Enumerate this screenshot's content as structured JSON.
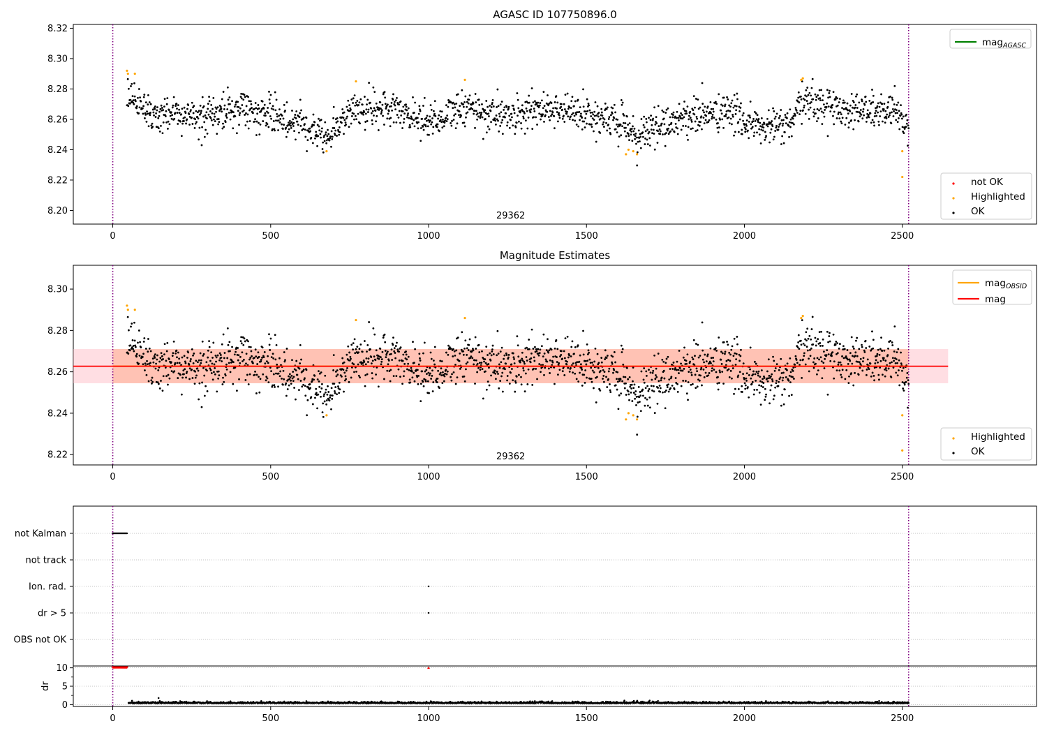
{
  "colors": {
    "ok": "#000000",
    "highlighted": "#ffa500",
    "not_ok": "#ff0000",
    "mag_agasc": "#008000",
    "mag_obsid": "#ffa500",
    "mag": "#ff0000",
    "band_obsid": "#ffa07a",
    "band_mag": "#ffb6c1",
    "obs_boundary": "#800080",
    "grid": "#b0b0b0"
  },
  "chart_data": [
    {
      "type": "scatter",
      "title": "AGASC ID 107750896.0",
      "x_range": [
        -125,
        2925
      ],
      "ylim": [
        8.191,
        8.3225
      ],
      "y_ticks": [
        "8.20",
        "8.22",
        "8.24",
        "8.26",
        "8.28",
        "8.30",
        "8.32"
      ],
      "x_ticks": [
        "0",
        "500",
        "1000",
        "1500",
        "2000",
        "2500"
      ],
      "obsid_boundaries": [
        0,
        2520
      ],
      "obsid_labels": [
        {
          "x": 1260,
          "text": "29362"
        }
      ],
      "series": [
        {
          "name": "not OK",
          "kind": "red",
          "values": []
        },
        {
          "name": "Highlighted",
          "kind": "highlighted",
          "points": [
            [
              45,
              8.292
            ],
            [
              48,
              8.29
            ],
            [
              70,
              8.29
            ],
            [
              677,
              8.239
            ],
            [
              770,
              8.285
            ],
            [
              1115,
              8.286
            ],
            [
              1625,
              8.237
            ],
            [
              1633,
              8.24
            ],
            [
              1648,
              8.239
            ],
            [
              1660,
              8.237
            ],
            [
              2180,
              8.286
            ],
            [
              2185,
              8.287
            ],
            [
              2500,
              8.239
            ],
            [
              2500,
              8.222
            ]
          ]
        },
        {
          "name": "OK",
          "kind": "ok",
          "generated_from_profile": true,
          "x_start": 45,
          "x_end": 2520,
          "count": 1800,
          "mean": 8.262,
          "profile": [
            [
              45,
              8.273
            ],
            [
              150,
              8.262
            ],
            [
              300,
              8.261
            ],
            [
              400,
              8.268
            ],
            [
              500,
              8.262
            ],
            [
              600,
              8.258
            ],
            [
              680,
              8.249
            ],
            [
              760,
              8.267
            ],
            [
              900,
              8.266
            ],
            [
              1000,
              8.259
            ],
            [
              1120,
              8.267
            ],
            [
              1250,
              8.262
            ],
            [
              1400,
              8.268
            ],
            [
              1500,
              8.262
            ],
            [
              1620,
              8.258
            ],
            [
              1640,
              8.247
            ],
            [
              1700,
              8.253
            ],
            [
              1800,
              8.261
            ],
            [
              1950,
              8.265
            ],
            [
              2050,
              8.254
            ],
            [
              2150,
              8.257
            ],
            [
              2190,
              8.273
            ],
            [
              2300,
              8.267
            ],
            [
              2450,
              8.265
            ],
            [
              2520,
              8.258
            ]
          ],
          "sd": 0.006
        }
      ],
      "legend_lines": [
        {
          "label": "mag",
          "subscript": "AGASC",
          "color_key": "mag_agasc"
        }
      ],
      "legend_points": [
        {
          "label": "not OK",
          "color_key": "not_ok"
        },
        {
          "label": "Highlighted",
          "color_key": "highlighted"
        },
        {
          "label": "OK",
          "color_key": "ok"
        }
      ]
    },
    {
      "type": "scatter",
      "title": "Magnitude Estimates",
      "x_range": [
        -125,
        2925
      ],
      "ylim": [
        8.215,
        8.3115
      ],
      "y_ticks": [
        "8.22",
        "8.24",
        "8.26",
        "8.28",
        "8.30"
      ],
      "x_ticks": [
        "0",
        "500",
        "1000",
        "1500",
        "2000",
        "2500"
      ],
      "obsid_boundaries": [
        0,
        2520
      ],
      "obsid_labels": [
        {
          "x": 1260,
          "text": "29362"
        }
      ],
      "mag_line": {
        "value": 8.2627,
        "x_range": [
          -125,
          2645
        ]
      },
      "mag_band": {
        "low": 8.2545,
        "high": 8.271,
        "x_range": [
          -125,
          2645
        ]
      },
      "obsid_line": {
        "value": 8.2627,
        "x_range": [
          0,
          2520
        ]
      },
      "obsid_band": {
        "low": 8.2545,
        "high": 8.271,
        "x_range": [
          0,
          2520
        ]
      },
      "series": [
        {
          "name": "Highlighted",
          "kind": "highlighted",
          "points": [
            [
              45,
              8.292
            ],
            [
              48,
              8.29
            ],
            [
              70,
              8.29
            ],
            [
              677,
              8.239
            ],
            [
              770,
              8.285
            ],
            [
              1115,
              8.286
            ],
            [
              1625,
              8.237
            ],
            [
              1633,
              8.24
            ],
            [
              1648,
              8.239
            ],
            [
              1660,
              8.237
            ],
            [
              2180,
              8.286
            ],
            [
              2185,
              8.287
            ],
            [
              2500,
              8.239
            ],
            [
              2500,
              8.222
            ]
          ]
        },
        {
          "name": "OK",
          "kind": "ok",
          "generated_from_profile": true,
          "x_start": 45,
          "x_end": 2520,
          "count": 1800,
          "mean": 8.262,
          "profile": [
            [
              45,
              8.273
            ],
            [
              150,
              8.262
            ],
            [
              300,
              8.261
            ],
            [
              400,
              8.268
            ],
            [
              500,
              8.262
            ],
            [
              600,
              8.258
            ],
            [
              680,
              8.249
            ],
            [
              760,
              8.267
            ],
            [
              900,
              8.266
            ],
            [
              1000,
              8.259
            ],
            [
              1120,
              8.267
            ],
            [
              1250,
              8.262
            ],
            [
              1400,
              8.268
            ],
            [
              1500,
              8.262
            ],
            [
              1620,
              8.258
            ],
            [
              1640,
              8.247
            ],
            [
              1700,
              8.253
            ],
            [
              1800,
              8.261
            ],
            [
              1950,
              8.265
            ],
            [
              2050,
              8.254
            ],
            [
              2150,
              8.257
            ],
            [
              2190,
              8.273
            ],
            [
              2300,
              8.267
            ],
            [
              2450,
              8.265
            ],
            [
              2520,
              8.258
            ]
          ],
          "sd": 0.006
        }
      ],
      "legend_lines": [
        {
          "label": "mag",
          "subscript": "OBSID",
          "color_key": "mag_obsid"
        },
        {
          "label": "mag",
          "subscript": "",
          "color_key": "mag"
        }
      ],
      "legend_points": [
        {
          "label": "Highlighted",
          "color_key": "highlighted"
        },
        {
          "label": "OK",
          "color_key": "ok"
        }
      ]
    },
    {
      "type": "scatter",
      "title": "",
      "x_range": [
        -125,
        2925
      ],
      "categories": [
        "not Kalman",
        "not track",
        "Ion. rad.",
        "dr > 5",
        "OBS not OK"
      ],
      "flag_points": {
        "not Kalman": {
          "x_start": 0,
          "x_end": 45,
          "count": 22
        },
        "not track": {
          "count": 0
        },
        "Ion. rad.": {
          "x": [
            1000
          ]
        },
        "dr > 5": {
          "x": [
            1000
          ]
        },
        "OBS not OK": {
          "count": 0
        }
      },
      "obsid_boundaries": [
        0,
        2520
      ]
    },
    {
      "type": "scatter",
      "title": "",
      "ylabel": "dr",
      "x_range": [
        -125,
        2925
      ],
      "ylim": [
        -0.5,
        10.5
      ],
      "y_ticks": [
        "0",
        "5",
        "10"
      ],
      "x_ticks": [
        "0",
        "500",
        "1000",
        "1500",
        "2000",
        "2500"
      ],
      "obsid_boundaries": [
        0,
        2520
      ],
      "clipped_points": {
        "value": 10,
        "x_start": 0,
        "x_end": 45,
        "count": 22,
        "extra_x": [
          1000
        ]
      },
      "dr_series": {
        "x_start": 50,
        "x_end": 2520,
        "count": 1800,
        "mean": 0.45,
        "sd": 0.25,
        "outliers": [
          [
            145,
            1.8
          ],
          [
            1620,
            1.1
          ],
          [
            1650,
            1.0
          ],
          [
            1700,
            1.1
          ]
        ]
      }
    }
  ]
}
